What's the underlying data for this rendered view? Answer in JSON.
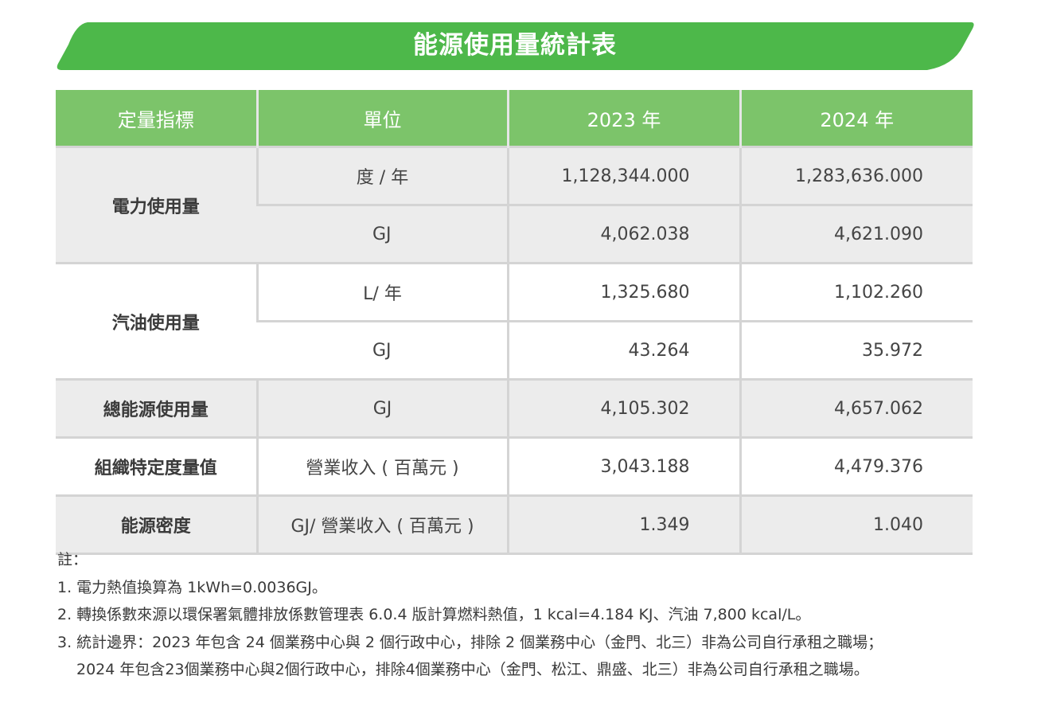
{
  "title": "能源使用量統計表",
  "colors": {
    "banner": "#4db84a",
    "header": "#7cc46a",
    "row_gray": "#ececec"
  },
  "headers": [
    "定量指標",
    "單位",
    "2023 年",
    "2024 年"
  ],
  "rows": {
    "electricity": {
      "label": "電力使用量",
      "r1": {
        "unit": "度 / 年",
        "v2023": "1,128,344.000",
        "v2024": "1,283,636.000"
      },
      "r2": {
        "unit": "GJ",
        "v2023": "4,062.038",
        "v2024": "4,621.090"
      }
    },
    "gasoline": {
      "label": "汽油使用量",
      "r1": {
        "unit": "L/ 年",
        "v2023": "1,325.680",
        "v2024": "1,102.260"
      },
      "r2": {
        "unit": "GJ",
        "v2023": "43.264",
        "v2024": "35.972"
      }
    },
    "total": {
      "label": "總能源使用量",
      "unit": "GJ",
      "v2023": "4,105.302",
      "v2024": "4,657.062"
    },
    "org": {
      "label": "組織特定度量值",
      "unit": "營業收入 ( 百萬元 )",
      "v2023": "3,043.188",
      "v2024": "4,479.376"
    },
    "intensity": {
      "label": "能源密度",
      "unit": "GJ/ 營業收入 ( 百萬元 )",
      "v2023": "1.349",
      "v2024": "1.040"
    }
  },
  "notes": {
    "heading": "註：",
    "n1": "1. 電力熱值換算為 1kWh=0.0036GJ。",
    "n2": "2. 轉換係數來源以環保署氣體排放係數管理表 6.0.4 版計算燃料熱值，1 kcal=4.184 KJ、汽油 7,800 kcal/L。",
    "n3a": "3. 統計邊界：2023 年包含 24 個業務中心與 2 個行政中心，排除 2 個業務中心（金門、北三）非為公司自行承租之職場；",
    "n3b": "2024 年包含23個業務中心與2個行政中心，排除4個業務中心（金門、松江、鼎盛、北三）非為公司自行承租之職場。"
  }
}
